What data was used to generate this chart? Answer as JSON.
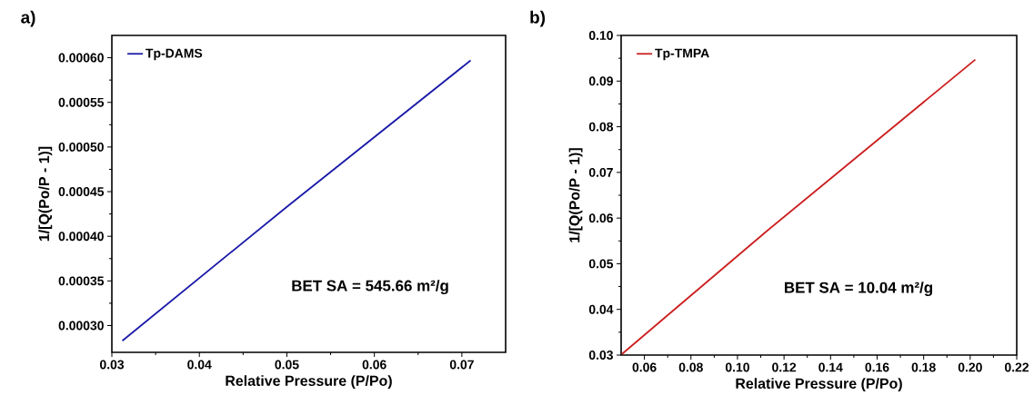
{
  "chart_data": [
    {
      "type": "line",
      "title": "a)",
      "xlabel": "Relative Pressure (P/Po)",
      "ylabel": "1/[Q(Po/P - 1)]",
      "x": [
        0.0312,
        0.05,
        0.071
      ],
      "series": [
        {
          "name": "Tp-DAMS",
          "color": "#1a1aa8",
          "values": [
            0.000283,
            0.000433,
            0.000597
          ]
        }
      ],
      "xlim": [
        0.03,
        0.075
      ],
      "xticks": [
        0.03,
        0.04,
        0.05,
        0.06,
        0.07
      ],
      "ylim": [
        0.00027,
        0.000625
      ],
      "yticks": [
        {
          "value": 0.0003,
          "label": "0.00030"
        },
        {
          "value": 0.00035,
          "label": "0.00035"
        },
        {
          "value": 0.0004,
          "label": "0.00040"
        },
        {
          "value": 0.00045,
          "label": "0.00045"
        },
        {
          "value": 0.0005,
          "label": "0.00050"
        },
        {
          "value": 0.00055,
          "label": "0.00055"
        },
        {
          "value": 0.0006,
          "label": "0.00060"
        }
      ],
      "legend": "top left",
      "grid": false,
      "annotations": [
        "BET SA = 545.66 m²/g"
      ]
    },
    {
      "type": "line",
      "title": "b)",
      "xlabel": "Relative Pressure (P/Po)",
      "ylabel": "1/[Q(Po/P - 1)]",
      "x": [
        0.0503,
        0.112,
        0.2022
      ],
      "series": [
        {
          "name": "Tp-TMPA",
          "color": "#cc1f1f",
          "values": [
            0.0302,
            0.0569,
            0.0947
          ]
        }
      ],
      "xlim": [
        0.05,
        0.22
      ],
      "xticks": [
        0.06,
        0.08,
        {
          "value": 0.1,
          "label": "0.10"
        },
        0.12,
        0.14,
        0.16,
        0.18,
        {
          "value": 0.2,
          "label": "0.20"
        },
        0.22
      ],
      "ylim": [
        0.03,
        0.1
      ],
      "yticks": [
        0.03,
        0.04,
        0.05,
        0.06,
        0.07,
        0.08,
        0.09,
        {
          "value": 0.1,
          "label": "0.10"
        }
      ],
      "legend": "top left",
      "grid": false,
      "annotations": [
        "BET SA = 10.04 m²/g"
      ]
    }
  ]
}
